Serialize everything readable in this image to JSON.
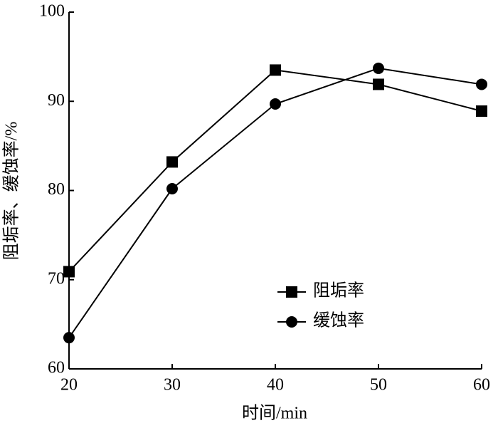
{
  "chart_data": {
    "type": "line",
    "x_label": "时间/min",
    "y_label": "阻垢率、缓蚀率/%",
    "x": [
      20,
      30,
      40,
      50,
      60
    ],
    "series": [
      {
        "name": "阻垢率",
        "color": "#000000",
        "marker": "square",
        "values": [
          70.9,
          83.2,
          93.5,
          91.9,
          88.9
        ]
      },
      {
        "name": "缓蚀率",
        "color": "#000000",
        "marker": "circle",
        "values": [
          63.5,
          80.2,
          89.7,
          93.7,
          91.9
        ]
      }
    ],
    "xlim": [
      20,
      60
    ],
    "xticks": [
      20,
      30,
      40,
      50,
      60
    ],
    "ylim": [
      60,
      100
    ],
    "yticks": [
      60,
      70,
      80,
      90,
      100
    ],
    "grid": false,
    "legend": "lower right"
  }
}
